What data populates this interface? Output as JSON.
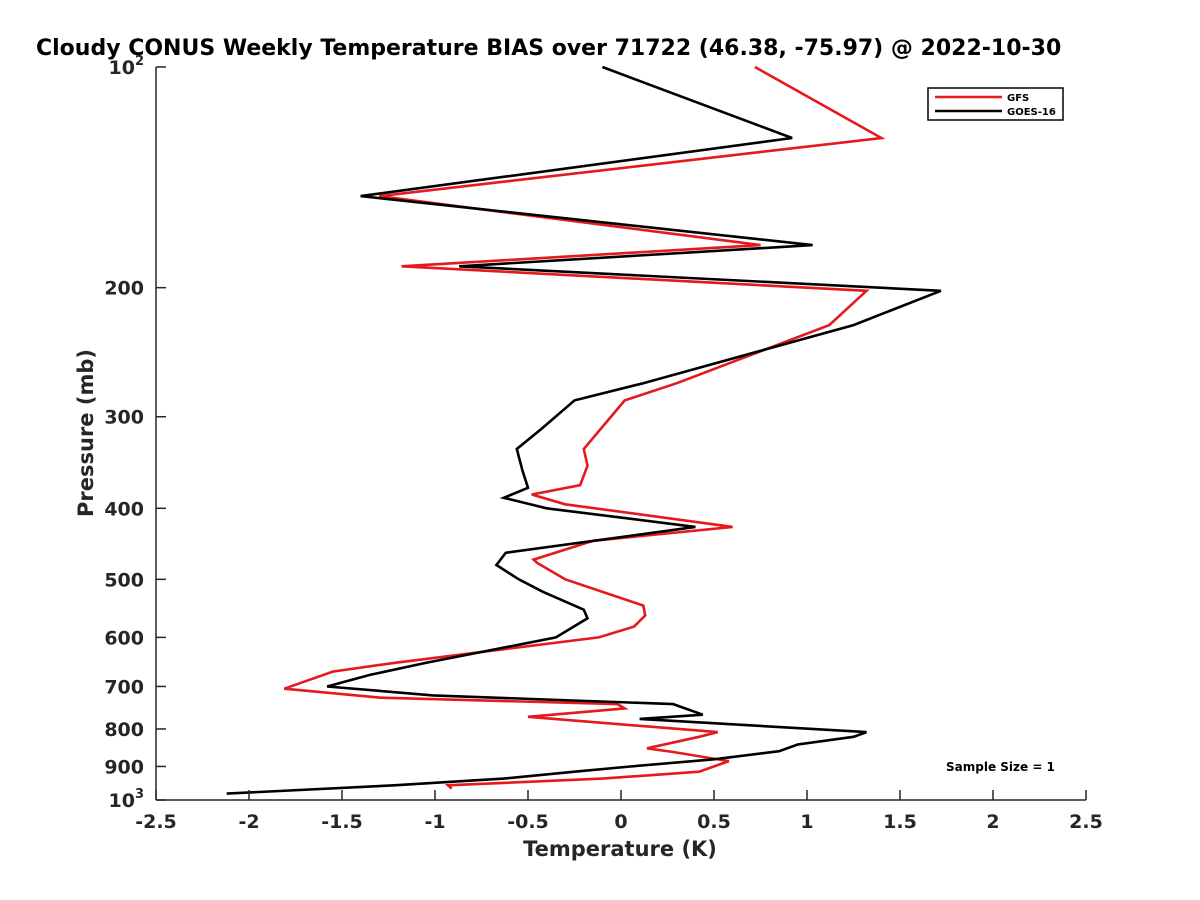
{
  "chart_data": {
    "type": "line",
    "title": "Cloudy CONUS Weekly Temperature BIAS over 71722 (46.38, -75.97) @ 2022-10-30",
    "xlabel": "Temperature (K)",
    "ylabel": "Pressure (mb)",
    "xlim": [
      -2.5,
      2.5
    ],
    "ylim": [
      100,
      1000
    ],
    "yscale": "log",
    "y_reversed": true,
    "grid": false,
    "legend_position": "top-right",
    "x_ticks": [
      "-2.5",
      "-2",
      "-1.5",
      "-1",
      "-0.5",
      "0",
      "0.5",
      "1",
      "1.5",
      "2",
      "2.5"
    ],
    "y_ticks": [
      {
        "value": 100,
        "base": "10",
        "exp": "2"
      },
      {
        "value": 200,
        "label": "200"
      },
      {
        "value": 300,
        "label": "300"
      },
      {
        "value": 400,
        "label": "400"
      },
      {
        "value": 500,
        "label": "500"
      },
      {
        "value": 600,
        "label": "600"
      },
      {
        "value": 700,
        "label": "700"
      },
      {
        "value": 800,
        "label": "800"
      },
      {
        "value": 900,
        "label": "900"
      },
      {
        "value": 1000,
        "base": "10",
        "exp": "3"
      }
    ],
    "annotation": "Sample Size = 1",
    "series": [
      {
        "name": "GFS",
        "color": "#e41a1c",
        "points": [
          [
            0.72,
            100
          ],
          [
            1.4,
            125
          ],
          [
            -1.3,
            150
          ],
          [
            0.75,
            175
          ],
          [
            -1.18,
            187
          ],
          [
            1.32,
            202
          ],
          [
            1.12,
            225
          ],
          [
            0.3,
            270
          ],
          [
            0.02,
            285
          ],
          [
            -0.2,
            332
          ],
          [
            -0.18,
            350
          ],
          [
            -0.22,
            372
          ],
          [
            -0.48,
            383
          ],
          [
            -0.3,
            395
          ],
          [
            0.6,
            424
          ],
          [
            -0.15,
            443
          ],
          [
            -0.47,
            470
          ],
          [
            -0.45,
            475
          ],
          [
            -0.3,
            500
          ],
          [
            0.12,
            543
          ],
          [
            0.13,
            560
          ],
          [
            0.07,
            580
          ],
          [
            -0.12,
            600
          ],
          [
            -1.22,
            650
          ],
          [
            -1.55,
            668
          ],
          [
            -1.81,
            705
          ],
          [
            -1.3,
            725
          ],
          [
            -0.02,
            740
          ],
          [
            0.02,
            750
          ],
          [
            -0.5,
            770
          ],
          [
            0.52,
            808
          ],
          [
            0.42,
            820
          ],
          [
            0.14,
            850
          ],
          [
            0.28,
            860
          ],
          [
            0.58,
            885
          ],
          [
            0.42,
            915
          ],
          [
            -0.1,
            935
          ],
          [
            -0.93,
            955
          ],
          [
            -0.91,
            965
          ]
        ]
      },
      {
        "name": "GOES-16",
        "color": "#000000",
        "points": [
          [
            -0.1,
            100
          ],
          [
            0.92,
            125
          ],
          [
            -1.4,
            150
          ],
          [
            1.03,
            175
          ],
          [
            -0.87,
            187
          ],
          [
            1.72,
            202
          ],
          [
            1.25,
            225
          ],
          [
            0.12,
            270
          ],
          [
            -0.25,
            285
          ],
          [
            -0.43,
            312
          ],
          [
            -0.56,
            332
          ],
          [
            -0.53,
            355
          ],
          [
            -0.5,
            375
          ],
          [
            -0.63,
            387
          ],
          [
            -0.4,
            400
          ],
          [
            0.4,
            424
          ],
          [
            -0.62,
            460
          ],
          [
            -0.67,
            478
          ],
          [
            -0.55,
            500
          ],
          [
            -0.42,
            520
          ],
          [
            -0.2,
            550
          ],
          [
            -0.18,
            565
          ],
          [
            -0.35,
            600
          ],
          [
            -1.05,
            650
          ],
          [
            -1.35,
            675
          ],
          [
            -1.58,
            700
          ],
          [
            -1.01,
            720
          ],
          [
            0.28,
            740
          ],
          [
            0.44,
            765
          ],
          [
            0.1,
            775
          ],
          [
            1.32,
            808
          ],
          [
            1.25,
            820
          ],
          [
            0.95,
            840
          ],
          [
            0.85,
            858
          ],
          [
            0.5,
            880
          ],
          [
            0.05,
            900
          ],
          [
            -0.25,
            915
          ],
          [
            -0.63,
            935
          ],
          [
            -1.22,
            955
          ],
          [
            -2.12,
            980
          ]
        ]
      }
    ]
  }
}
